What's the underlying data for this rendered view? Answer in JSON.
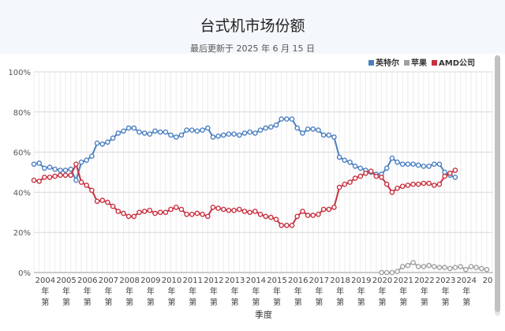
{
  "title": "台式机市场份额",
  "subtitle": "最后更新于 2025 年 6 月 15 日",
  "chart_data": {
    "type": "line",
    "title": "台式机市场份额",
    "xlabel": "季度",
    "ylabel": "",
    "ylim": [
      0,
      100
    ],
    "y_ticks": [
      "0%",
      "20%",
      "40%",
      "60%",
      "80%",
      "100%"
    ],
    "x_ticks": [
      "2004年第",
      "2005年第",
      "2006年第",
      "2007年第",
      "2008年第",
      "2009年第",
      "2010年第",
      "2011年第",
      "2012年第",
      "2013年第",
      "2014年第",
      "2015年第",
      "2016年第",
      "2017年第",
      "2018年第",
      "2019年第",
      "2020年第",
      "2021年第",
      "2022年第",
      "2023年第",
      "2024年第",
      "20"
    ],
    "legend_position": "top-right",
    "grid": true,
    "x_range": [
      2003.5,
      2025.3
    ],
    "series": [
      {
        "name": "英特尔",
        "color": "#4a7fc1",
        "x_start": 2003.5,
        "x_step": 0.25,
        "values": [
          54,
          54.5,
          52,
          52.5,
          51.5,
          51,
          51,
          51.5,
          46,
          55,
          56,
          58,
          64.5,
          64,
          65,
          67,
          69.5,
          70.5,
          72,
          72,
          70,
          69.5,
          69,
          70.5,
          70,
          70,
          68.5,
          67.5,
          68.5,
          71,
          71,
          70.5,
          71,
          72,
          67.5,
          68,
          68.5,
          69,
          69,
          68.5,
          69.5,
          70,
          69.5,
          71,
          72,
          72.5,
          73.5,
          76.5,
          76.5,
          76.5,
          72,
          69.5,
          71.5,
          71.5,
          71,
          68.5,
          68.5,
          67.5,
          57.5,
          56,
          55,
          53,
          52,
          51,
          50,
          49,
          49,
          52,
          57,
          55,
          54,
          54,
          54,
          53.5,
          53,
          53,
          54,
          54,
          50,
          48.5,
          47.5
        ]
      },
      {
        "name": "苹果",
        "color": "#a0a0a0",
        "x_start": 2020.0,
        "x_step": 0.25,
        "values": [
          0,
          0,
          0,
          0.5,
          3,
          3.5,
          5,
          3,
          3,
          3.5,
          3,
          2.5,
          2.5,
          2,
          2.5,
          3,
          1.5,
          3,
          2.5,
          2,
          1.5
        ]
      },
      {
        "name": "AMD公司",
        "color": "#c8313f",
        "x_start": 2003.5,
        "x_step": 0.25,
        "values": [
          46,
          45.5,
          47.5,
          47.5,
          48,
          48.5,
          48.5,
          48.5,
          54,
          45,
          43.5,
          41,
          35.5,
          36,
          35,
          33,
          30.5,
          29.5,
          28,
          28,
          30,
          30.5,
          31,
          29.5,
          30,
          30,
          31.5,
          32.5,
          31.5,
          29,
          29,
          29.5,
          29,
          28,
          32.5,
          32,
          31.5,
          31,
          31,
          31.5,
          30.5,
          30,
          30.5,
          29,
          28,
          27.5,
          26.5,
          23.5,
          23.5,
          23.5,
          28,
          30.5,
          28.5,
          28.5,
          29,
          31.5,
          31.5,
          32.5,
          42.5,
          44,
          45,
          47,
          48,
          49.5,
          50.5,
          48,
          47.5,
          44,
          40,
          42,
          43,
          43.5,
          44,
          44,
          44.5,
          44.5,
          43.5,
          44,
          48,
          49.5,
          51
        ]
      }
    ]
  }
}
